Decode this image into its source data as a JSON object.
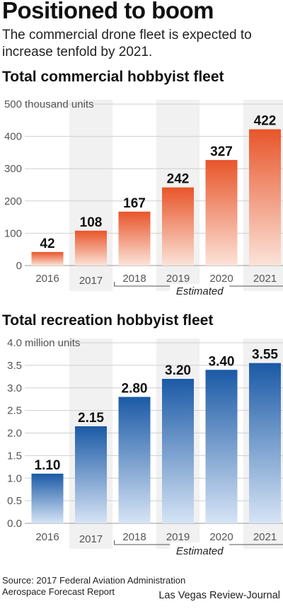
{
  "header": {
    "title": "Positioned to boom",
    "subtitle": "The commercial drone fleet is expected to increase tenfold by 2021."
  },
  "chart_data": [
    {
      "type": "bar",
      "title": "Total commercial hobbyist fleet",
      "unit_label": "thousand units",
      "categories": [
        "2016",
        "2017",
        "2018",
        "2019",
        "2020",
        "2021"
      ],
      "values": [
        42,
        108,
        167,
        242,
        327,
        422
      ],
      "value_labels": [
        "42",
        "108",
        "167",
        "242",
        "327",
        "422"
      ],
      "ylim": [
        0,
        500
      ],
      "yticks": [
        0,
        100,
        200,
        300,
        400,
        500
      ],
      "ytick_labels": [
        "0",
        "100",
        "200",
        "300",
        "400",
        "500"
      ],
      "estimated_label": "Estimated",
      "estimated_categories": [
        "2018",
        "2019",
        "2020",
        "2021"
      ],
      "grid": true,
      "colors": {
        "top": "#e8552a",
        "bottom": "#fbe3d8"
      }
    },
    {
      "type": "bar",
      "title": "Total recreation hobbyist fleet",
      "unit_label": "million units",
      "categories": [
        "2016",
        "2017",
        "2018",
        "2019",
        "2020",
        "2021"
      ],
      "values": [
        1.1,
        2.15,
        2.8,
        3.2,
        3.4,
        3.55
      ],
      "value_labels": [
        "1.10",
        "2.15",
        "2.80",
        "3.20",
        "3.40",
        "3.55"
      ],
      "ylim": [
        0,
        4.0
      ],
      "yticks": [
        0,
        0.5,
        1.0,
        1.5,
        2.0,
        2.5,
        3.0,
        3.5,
        4.0
      ],
      "ytick_labels": [
        "0.0",
        "0.5",
        "1.0",
        "1.5",
        "2.0",
        "2.5",
        "3.0",
        "3.5",
        "4.0"
      ],
      "estimated_label": "Estimated",
      "estimated_categories": [
        "2018",
        "2019",
        "2020",
        "2021"
      ],
      "grid": true,
      "colors": {
        "top": "#1b5aa6",
        "bottom": "#d6e4f5"
      }
    }
  ],
  "footer": {
    "source": "Source: 2017 Federal Aviation Administration Aerospace Forecast Report",
    "credit": "Las Vegas Review-Journal"
  }
}
